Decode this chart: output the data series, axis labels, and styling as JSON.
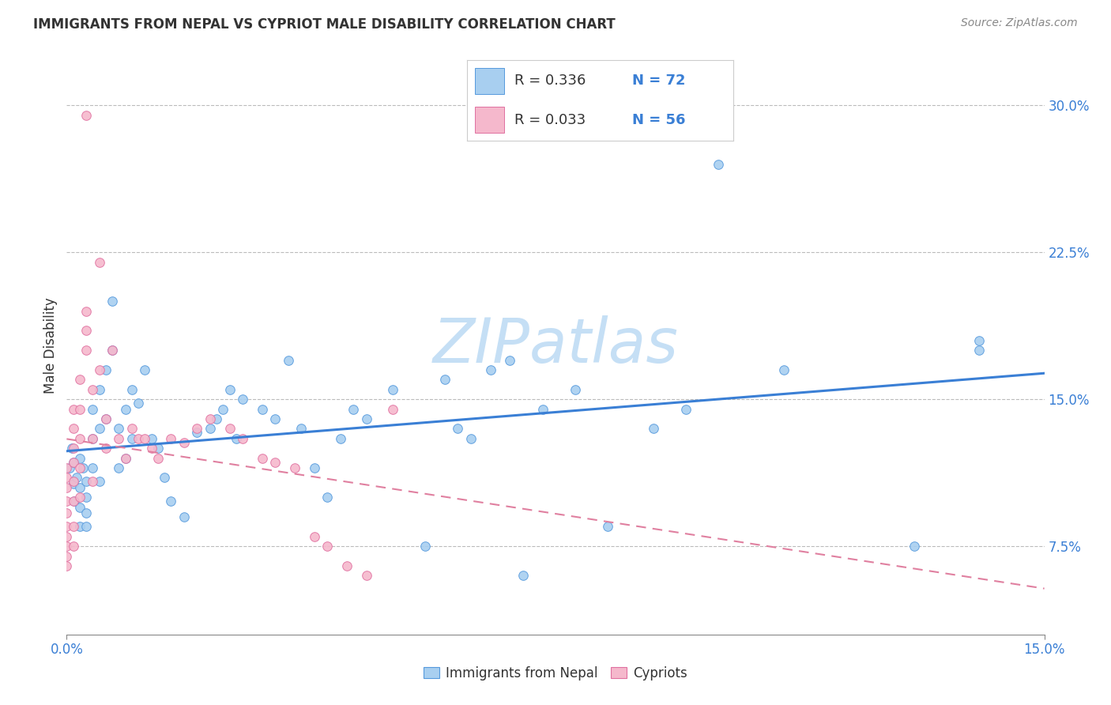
{
  "title": "IMMIGRANTS FROM NEPAL VS CYPRIOT MALE DISABILITY CORRELATION CHART",
  "source": "Source: ZipAtlas.com",
  "ylabel": "Male Disability",
  "ytick_values": [
    0.075,
    0.15,
    0.225,
    0.3
  ],
  "xmin": 0.0,
  "xmax": 0.15,
  "ymin": 0.03,
  "ymax": 0.325,
  "legend_label_nepal": "Immigrants from Nepal",
  "legend_label_cypriot": "Cypriots",
  "color_nepal_fill": "#a8cff0",
  "color_nepal_edge": "#5599dd",
  "color_cypriot_fill": "#f5b8cc",
  "color_cypriot_edge": "#e070a0",
  "color_trendline_nepal": "#3a7fd5",
  "color_trendline_cypriot": "#e080a0",
  "watermark": "ZIPatlas",
  "watermark_color": "#c5dff5",
  "nepal_R": 0.336,
  "nepal_N": 72,
  "cypriot_R": 0.033,
  "cypriot_N": 56,
  "nepal_x": [
    0.0005,
    0.0008,
    0.001,
    0.001,
    0.0012,
    0.0015,
    0.002,
    0.002,
    0.002,
    0.002,
    0.0025,
    0.003,
    0.003,
    0.003,
    0.003,
    0.004,
    0.004,
    0.004,
    0.005,
    0.005,
    0.005,
    0.006,
    0.006,
    0.007,
    0.007,
    0.008,
    0.008,
    0.009,
    0.009,
    0.01,
    0.01,
    0.011,
    0.012,
    0.013,
    0.014,
    0.015,
    0.016,
    0.018,
    0.02,
    0.022,
    0.023,
    0.024,
    0.025,
    0.026,
    0.027,
    0.03,
    0.032,
    0.034,
    0.036,
    0.038,
    0.04,
    0.042,
    0.044,
    0.046,
    0.05,
    0.055,
    0.058,
    0.06,
    0.062,
    0.065,
    0.068,
    0.07,
    0.073,
    0.078,
    0.083,
    0.09,
    0.095,
    0.1,
    0.11,
    0.13,
    0.14,
    0.14
  ],
  "nepal_y": [
    0.115,
    0.125,
    0.118,
    0.107,
    0.098,
    0.11,
    0.12,
    0.105,
    0.095,
    0.085,
    0.115,
    0.108,
    0.1,
    0.092,
    0.085,
    0.145,
    0.13,
    0.115,
    0.155,
    0.135,
    0.108,
    0.165,
    0.14,
    0.2,
    0.175,
    0.135,
    0.115,
    0.145,
    0.12,
    0.155,
    0.13,
    0.148,
    0.165,
    0.13,
    0.125,
    0.11,
    0.098,
    0.09,
    0.133,
    0.135,
    0.14,
    0.145,
    0.155,
    0.13,
    0.15,
    0.145,
    0.14,
    0.17,
    0.135,
    0.115,
    0.1,
    0.13,
    0.145,
    0.14,
    0.155,
    0.075,
    0.16,
    0.135,
    0.13,
    0.165,
    0.17,
    0.06,
    0.145,
    0.155,
    0.085,
    0.135,
    0.145,
    0.27,
    0.165,
    0.075,
    0.175,
    0.18
  ],
  "cypriot_x": [
    0.0,
    0.0,
    0.0,
    0.0,
    0.0,
    0.0,
    0.0,
    0.0,
    0.0,
    0.0,
    0.001,
    0.001,
    0.001,
    0.001,
    0.001,
    0.001,
    0.001,
    0.001,
    0.002,
    0.002,
    0.002,
    0.002,
    0.002,
    0.003,
    0.003,
    0.003,
    0.003,
    0.004,
    0.004,
    0.004,
    0.005,
    0.005,
    0.006,
    0.006,
    0.007,
    0.008,
    0.009,
    0.01,
    0.011,
    0.012,
    0.013,
    0.014,
    0.016,
    0.018,
    0.02,
    0.022,
    0.025,
    0.027,
    0.03,
    0.032,
    0.035,
    0.038,
    0.04,
    0.043,
    0.046,
    0.05
  ],
  "cypriot_y": [
    0.115,
    0.11,
    0.105,
    0.098,
    0.092,
    0.085,
    0.08,
    0.075,
    0.07,
    0.065,
    0.145,
    0.135,
    0.125,
    0.118,
    0.108,
    0.098,
    0.085,
    0.075,
    0.16,
    0.145,
    0.13,
    0.115,
    0.1,
    0.195,
    0.185,
    0.175,
    0.295,
    0.155,
    0.13,
    0.108,
    0.22,
    0.165,
    0.14,
    0.125,
    0.175,
    0.13,
    0.12,
    0.135,
    0.13,
    0.13,
    0.125,
    0.12,
    0.13,
    0.128,
    0.135,
    0.14,
    0.135,
    0.13,
    0.12,
    0.118,
    0.115,
    0.08,
    0.075,
    0.065,
    0.06,
    0.145
  ]
}
